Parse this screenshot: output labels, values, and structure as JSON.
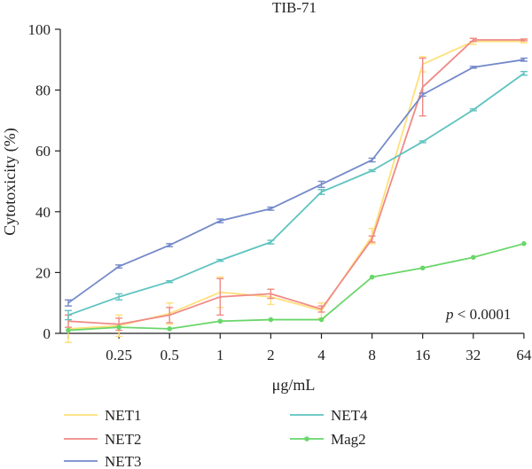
{
  "chart_data": {
    "type": "line",
    "title": "TIB-71",
    "xlabel": "μg/mL",
    "ylabel": "Cytotoxicity (%)",
    "x_tick_labels": [
      "",
      "0.25",
      "0.5",
      "1",
      "2",
      "4",
      "8",
      "16",
      "32",
      "64"
    ],
    "y_tick_labels": [
      "0",
      "20",
      "40",
      "60",
      "80",
      "100"
    ],
    "ylim": [
      0,
      100
    ],
    "annotation": {
      "italic": "p",
      "rest": " < 0.0001"
    },
    "legend_position": "bottom",
    "grid": false,
    "series": [
      {
        "name": "NET1",
        "color": "#ffe07a",
        "marker": false,
        "values": [
          1.5,
          2.5,
          6.5,
          13.5,
          12.0,
          7.5,
          32.0,
          88.5,
          96.0,
          96.0
        ],
        "errors": [
          4.5,
          3.5,
          3.5,
          5.0,
          2.5,
          2.5,
          2.5,
          2.5,
          1.0,
          0.5
        ]
      },
      {
        "name": "NET2",
        "color": "#ef8a86",
        "marker": false,
        "values": [
          4.0,
          3.0,
          6.0,
          12.0,
          13.0,
          8.0,
          31.0,
          81.0,
          96.5,
          96.5
        ],
        "errors": [
          2.0,
          2.0,
          2.5,
          6.0,
          1.5,
          1.0,
          1.0,
          9.5,
          0.5,
          0.3
        ]
      },
      {
        "name": "NET3",
        "color": "#7489c9",
        "marker": false,
        "values": [
          10.0,
          22.0,
          29.0,
          37.0,
          41.0,
          49.0,
          57.0,
          78.5,
          87.5,
          90.0
        ],
        "errors": [
          1.0,
          0.5,
          0.5,
          0.6,
          0.5,
          1.0,
          0.6,
          0.5,
          0.3,
          0.5
        ]
      },
      {
        "name": "NET4",
        "color": "#5fc3c0",
        "marker": false,
        "values": [
          6.0,
          12.0,
          17.0,
          24.0,
          30.0,
          46.5,
          53.5,
          63.0,
          73.5,
          85.5
        ],
        "errors": [
          1.5,
          1.0,
          0.3,
          0.3,
          0.6,
          0.8,
          0.3,
          0.3,
          0.3,
          0.6
        ]
      },
      {
        "name": "Mag2",
        "color": "#6ad66a",
        "marker": true,
        "values": [
          1.0,
          2.0,
          1.5,
          4.0,
          4.5,
          4.5,
          18.5,
          21.5,
          25.0,
          29.5
        ],
        "errors": [
          0,
          0,
          0,
          0,
          0,
          0,
          0,
          0,
          0,
          0
        ]
      }
    ]
  }
}
